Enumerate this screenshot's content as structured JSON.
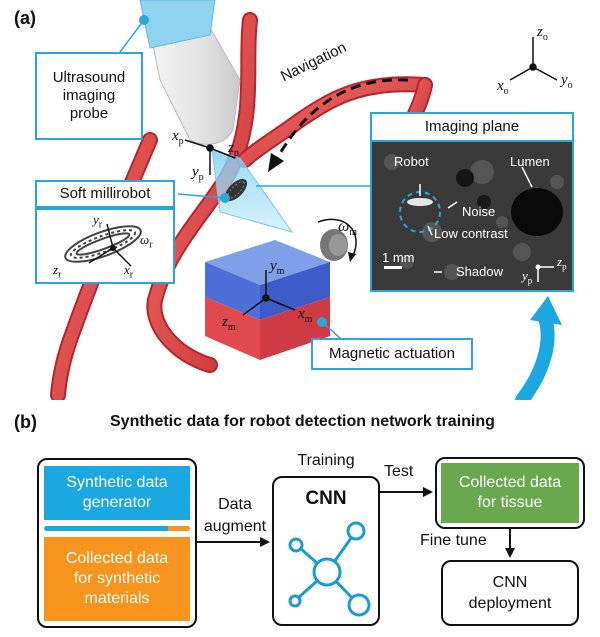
{
  "panel_a": {
    "panel_label": "(a)",
    "probe_callout": "Ultrasound imaging probe",
    "probe_callout_lines": [
      "Ultrasound",
      "imaging",
      "probe"
    ],
    "robot_callout": "Soft millirobot",
    "imaging_plane_title": "Imaging plane",
    "magnetic_callout": "Magnetic actuation",
    "navigation_label": "Navigation",
    "frames": {
      "origin": {
        "x": "x",
        "x_sub": "o",
        "y": "y",
        "y_sub": "o",
        "z": "z",
        "z_sub": "o"
      },
      "probe": {
        "x": "x",
        "x_sub": "p",
        "y": "y",
        "y_sub": "p",
        "z": "z",
        "z_sub": "p"
      },
      "robot": {
        "x": "x",
        "x_sub": "r",
        "y": "y",
        "y_sub": "r",
        "z": "z",
        "z_sub": "r",
        "omega": "ω",
        "omega_sub": "r"
      },
      "magnet": {
        "x": "x",
        "x_sub": "m",
        "y": "y",
        "y_sub": "m",
        "z": "z",
        "z_sub": "m",
        "omega": "ω",
        "omega_sub": "m"
      }
    },
    "ultrasound": {
      "robot": "Robot",
      "lumen": "Lumen",
      "noise": "Noise",
      "low_contrast": "Low contrast",
      "scale": "1 mm",
      "shadow": "Shadow",
      "axis_z": "z",
      "axis_z_sub": "p",
      "axis_y": "y",
      "axis_y_sub": "p"
    }
  },
  "panel_b": {
    "panel_label": "(b)",
    "title": "Synthetic data for robot detection network training",
    "synthetic_generator": "Synthetic data generator",
    "synthetic_generator_lines": [
      "Synthetic data",
      "generator"
    ],
    "collected_synthetic": "Collected data for synthetic materials",
    "collected_synthetic_lines": [
      "Collected data",
      "for synthetic",
      "materials"
    ],
    "data_augment_lines": [
      "Data",
      "augment"
    ],
    "training": "Training",
    "cnn": "CNN",
    "test": "Test",
    "collected_tissue_lines": [
      "Collected data",
      "for tissue"
    ],
    "fine_tune": "Fine tune",
    "deployment_lines": [
      "CNN",
      "deployment"
    ]
  },
  "colors": {
    "callout_border": "#2aa6d9",
    "vessel": "#e8494a",
    "generator_fill": "#1ba7e0",
    "materials_fill": "#f7941d",
    "tissue_fill": "#6aa84f",
    "network": "#1b9ad6"
  }
}
